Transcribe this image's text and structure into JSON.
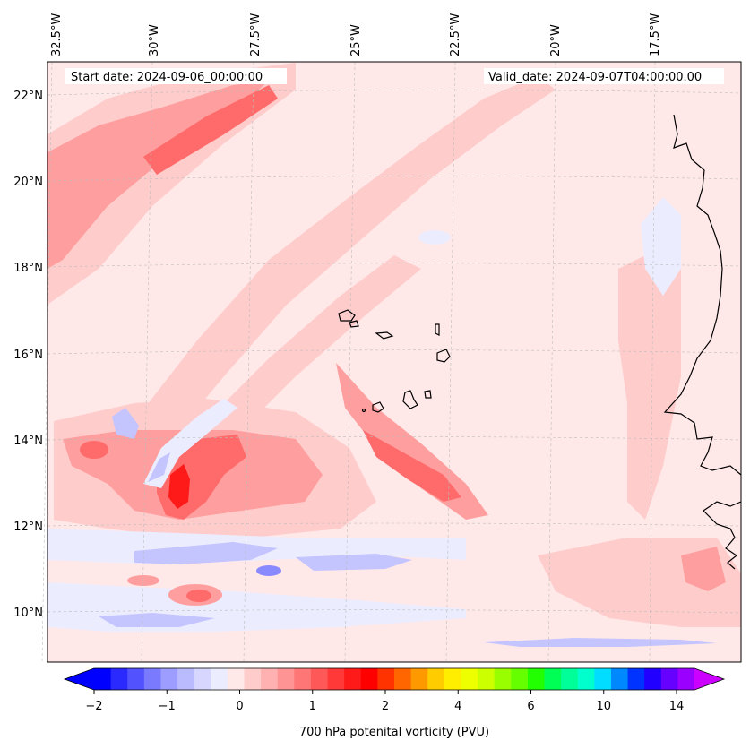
{
  "header": {
    "start_date": "Start date: 2024-09-06_00:00:00",
    "valid_date": "Valid_date: 2024-09-07T04:00:00.00"
  },
  "axes": {
    "lon_labels": [
      "32.5°W",
      "30°W",
      "27.5°W",
      "25°W",
      "22.5°W",
      "20°W",
      "17.5°W"
    ],
    "lat_labels": [
      "22°N",
      "20°N",
      "18°N",
      "16°N",
      "14°N",
      "12°N",
      "10°N"
    ]
  },
  "colorbar": {
    "label": "700 hPa potenital vorticity (PVU)",
    "ticks": [
      "−2",
      "−1",
      "0",
      "1",
      "2",
      "4",
      "6",
      "10",
      "14"
    ],
    "colors": [
      "#0000ff",
      "#2a2aff",
      "#5252ff",
      "#7a7aff",
      "#9d9dff",
      "#babaff",
      "#d6d6ff",
      "#ececff",
      "#ffe8e8",
      "#ffcccc",
      "#ffb0b0",
      "#ff9494",
      "#ff7676",
      "#ff5858",
      "#ff3838",
      "#ff1a1a",
      "#ff0000",
      "#ff3300",
      "#ff6600",
      "#ff9900",
      "#ffcc00",
      "#ffee00",
      "#eeff00",
      "#ccff00",
      "#99ff00",
      "#66ff00",
      "#22ff00",
      "#00ff55",
      "#00ff99",
      "#00ffcc",
      "#00ddff",
      "#0088ff",
      "#0033ff",
      "#2200ff",
      "#6600ff",
      "#9900ff"
    ],
    "under_color": "#0000ff",
    "over_color": "#cc00ff"
  },
  "field_colors": {
    "background": "#ffe8e8",
    "light_red": "#ffcccc",
    "mid_red": "#ff9e9e",
    "strong_red": "#ff6a6a",
    "core_red": "#ff1a1a",
    "light_blue": "#ececff",
    "mid_blue": "#c4c4ff",
    "strong_blue": "#8a8aff"
  }
}
